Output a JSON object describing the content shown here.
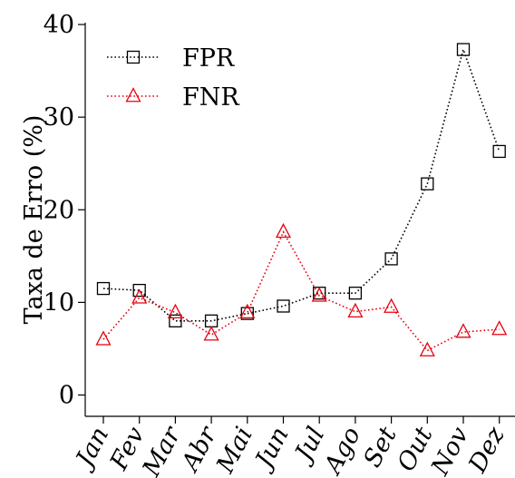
{
  "chart_data": {
    "type": "line",
    "title": "",
    "xlabel": "",
    "ylabel": "Taxa de Erro (%)",
    "ylim": [
      -2.3,
      40.2
    ],
    "yticks": [
      0,
      10,
      20,
      30,
      40
    ],
    "grid": false,
    "legend_position": "top-left",
    "categories": [
      "Jan",
      "Fev",
      "Mar",
      "Abr",
      "Mai",
      "Jun",
      "Jul",
      "Ago",
      "Set",
      "Out",
      "Nov",
      "Dez"
    ],
    "series": [
      {
        "name": "FPR",
        "color": "#000000",
        "marker": "square",
        "line_style": "dotted",
        "values": [
          11.5,
          11.3,
          8.0,
          8.0,
          8.8,
          9.6,
          11.0,
          11.0,
          14.7,
          22.8,
          37.3,
          26.3
        ]
      },
      {
        "name": "FNR",
        "color": "#e8000b",
        "marker": "triangle",
        "line_style": "dotted",
        "values": [
          6.0,
          10.5,
          8.9,
          6.5,
          8.9,
          17.6,
          10.7,
          9.0,
          9.5,
          4.8,
          6.8,
          7.1
        ]
      }
    ]
  }
}
